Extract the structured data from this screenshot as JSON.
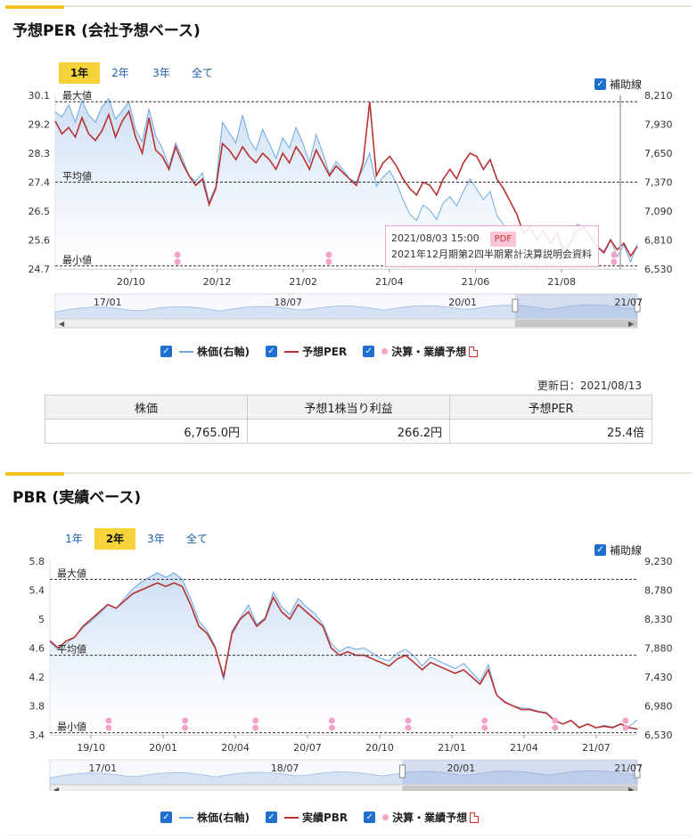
{
  "per_panel": {
    "title": "予想PER (会社予想ベース)",
    "tabs": [
      "1年",
      "2年",
      "3年",
      "全て"
    ],
    "active_tab": 0,
    "hojo_label": "補助線",
    "ref_labels": {
      "max": "最大値",
      "avg": "平均値",
      "min": "最小値"
    },
    "nav_labels": [
      "17/01",
      "18/07",
      "20/01",
      "21/07"
    ],
    "tooltip": {
      "date": "2021/08/03 15:00",
      "pdf": "PDF",
      "text": "2021年12月期第2四半期累計決算説明会資料"
    },
    "legend": {
      "price": "株価(右軸)",
      "ratio": "予想PER",
      "events": "決算・業績予想"
    },
    "updated": "更新日：2021/08/13",
    "table": {
      "headers": [
        "株価",
        "予想1株当り利益",
        "予想PER"
      ],
      "values": [
        "6,765.0円",
        "266.2円",
        "25.4倍"
      ]
    }
  },
  "pbr_panel": {
    "title": "PBR (実績ベース)",
    "tabs": [
      "1年",
      "2年",
      "3年",
      "全て"
    ],
    "active_tab": 1,
    "hojo_label": "補助線",
    "ref_labels": {
      "max": "最大値",
      "avg": "平均値",
      "min": "最小値"
    },
    "nav_labels": [
      "17/01",
      "18/07",
      "20/01",
      "21/07"
    ],
    "legend": {
      "price": "株価(右軸)",
      "ratio": "実績PBR",
      "events": "決算・業績予想"
    }
  },
  "colors": {
    "price_line": "#6fa8e0",
    "price_fill": "#c9dcf3",
    "ratio_line": "#b83232",
    "event_dot": "#f5a3c9",
    "tab_active": "#f6d33a"
  },
  "chart_data": [
    {
      "type": "line",
      "title": "予想PER (会社予想ベース)",
      "x_ticks": [
        "20/10",
        "20/12",
        "21/02",
        "21/04",
        "21/06",
        "21/08"
      ],
      "y_left_ticks": [
        "30.1",
        "29.2",
        "28.3",
        "27.4",
        "26.5",
        "25.6",
        "24.7"
      ],
      "y_right_ticks": [
        "8,210",
        "7,930",
        "7,650",
        "7,370",
        "7,090",
        "6,810",
        "6,530"
      ],
      "ylim_left": [
        24.7,
        30.1
      ],
      "ylim_right": [
        6530,
        8210
      ],
      "ref_lines": {
        "max": 29.9,
        "avg": 27.4,
        "min": 24.8
      },
      "grid": false,
      "series": [
        {
          "name": "予想PER",
          "axis": "left",
          "values": [
            29.3,
            28.9,
            29.1,
            28.8,
            29.4,
            28.9,
            28.7,
            29.0,
            29.5,
            28.8,
            29.3,
            29.6,
            28.8,
            28.3,
            29.4,
            28.4,
            28.2,
            27.8,
            28.5,
            28.0,
            27.6,
            27.3,
            27.5,
            26.7,
            27.2,
            28.6,
            28.4,
            28.1,
            28.5,
            28.2,
            28.0,
            28.3,
            28.1,
            27.8,
            28.3,
            28.0,
            28.5,
            28.2,
            27.8,
            28.4,
            28.0,
            27.6,
            27.9,
            27.7,
            27.5,
            27.3,
            28.0,
            29.9,
            27.6,
            28.0,
            28.2,
            27.9,
            27.5,
            27.2,
            27.0,
            27.4,
            27.3,
            27.0,
            27.5,
            27.8,
            27.5,
            28.0,
            28.3,
            28.2,
            27.8,
            28.1,
            27.5,
            27.2,
            26.8,
            26.4,
            25.8,
            26.0,
            25.6,
            25.9,
            25.5,
            25.8,
            25.2,
            25.5,
            25.9,
            26.0,
            25.7,
            25.4,
            25.2,
            25.6,
            25.3,
            25.5,
            25.1,
            25.4
          ]
        },
        {
          "name": "株価",
          "axis": "right",
          "values": [
            8050,
            8000,
            8120,
            7950,
            8160,
            8020,
            7950,
            8100,
            8180,
            7980,
            8060,
            8150,
            7880,
            7760,
            8080,
            7820,
            7700,
            7520,
            7750,
            7600,
            7430,
            7380,
            7460,
            7180,
            7330,
            7950,
            7850,
            7750,
            8020,
            7780,
            7680,
            7880,
            7740,
            7600,
            7800,
            7700,
            7900,
            7750,
            7560,
            7830,
            7650,
            7450,
            7570,
            7490,
            7400,
            7370,
            7500,
            7650,
            7330,
            7420,
            7480,
            7360,
            7200,
            7060,
            7000,
            7150,
            7100,
            7010,
            7170,
            7230,
            7140,
            7280,
            7400,
            7300,
            7200,
            7280,
            7050,
            6960,
            6850,
            6700,
            6560,
            6680,
            6550,
            6760,
            6680,
            6900,
            6720,
            6830,
            6960,
            6940,
            6850,
            6750,
            6700,
            6820,
            6650,
            6760,
            6600,
            6765
          ]
        },
        {
          "name": "決算・業績予想",
          "type": "events",
          "x_fraction": [
            0.21,
            0.47,
            0.96
          ]
        }
      ]
    },
    {
      "type": "line",
      "title": "PBR (実績ベース)",
      "x_ticks": [
        "19/10",
        "20/01",
        "20/04",
        "20/07",
        "20/10",
        "21/01",
        "21/04",
        "21/07"
      ],
      "y_left_ticks": [
        "5.8",
        "5.4",
        "5",
        "4.6",
        "4.2",
        "3.8",
        "3.4"
      ],
      "y_right_ticks": [
        "9,230",
        "8,780",
        "8,330",
        "7,880",
        "7,430",
        "6,980",
        "6,530"
      ],
      "ylim_left": [
        3.4,
        5.8
      ],
      "ylim_right": [
        6530,
        9230
      ],
      "ref_lines": {
        "max": 5.55,
        "avg": 4.5,
        "min": 3.43
      },
      "grid": false,
      "series": [
        {
          "name": "実績PBR",
          "axis": "left",
          "values": [
            4.7,
            4.6,
            4.7,
            4.75,
            4.9,
            5.0,
            5.1,
            5.2,
            5.15,
            5.25,
            5.35,
            5.4,
            5.45,
            5.5,
            5.45,
            5.5,
            5.45,
            5.2,
            4.9,
            4.8,
            4.6,
            4.2,
            4.8,
            5.0,
            5.1,
            4.9,
            5.0,
            5.3,
            5.1,
            5.0,
            5.2,
            5.1,
            5.0,
            4.9,
            4.6,
            4.5,
            4.55,
            4.5,
            4.5,
            4.45,
            4.4,
            4.35,
            4.45,
            4.5,
            4.4,
            4.3,
            4.4,
            4.35,
            4.3,
            4.25,
            4.3,
            4.2,
            4.1,
            4.3,
            3.95,
            3.85,
            3.8,
            3.75,
            3.75,
            3.72,
            3.7,
            3.6,
            3.55,
            3.6,
            3.5,
            3.55,
            3.5,
            3.52,
            3.5,
            3.55,
            3.5,
            3.48
          ]
        },
        {
          "name": "株価",
          "axis": "right",
          "values": [
            7980,
            7850,
            7950,
            8050,
            8200,
            8300,
            8420,
            8550,
            8500,
            8650,
            8800,
            8900,
            8980,
            9050,
            8980,
            9050,
            8950,
            8650,
            8300,
            8150,
            7900,
            7380,
            8150,
            8350,
            8550,
            8250,
            8350,
            8750,
            8520,
            8400,
            8650,
            8520,
            8420,
            8250,
            7950,
            7820,
            7900,
            7860,
            7880,
            7800,
            7720,
            7680,
            7800,
            7860,
            7760,
            7600,
            7740,
            7680,
            7620,
            7560,
            7640,
            7500,
            7360,
            7620,
            7150,
            7050,
            6980,
            6950,
            6940,
            6900,
            6880,
            6760,
            6700,
            6760,
            6640,
            6700,
            6640,
            6680,
            6650,
            6700,
            6660,
            6765
          ]
        },
        {
          "name": "決算・業績予想",
          "type": "events",
          "x_fraction": [
            0.1,
            0.23,
            0.35,
            0.48,
            0.61,
            0.74,
            0.86,
            0.98
          ]
        }
      ]
    }
  ]
}
